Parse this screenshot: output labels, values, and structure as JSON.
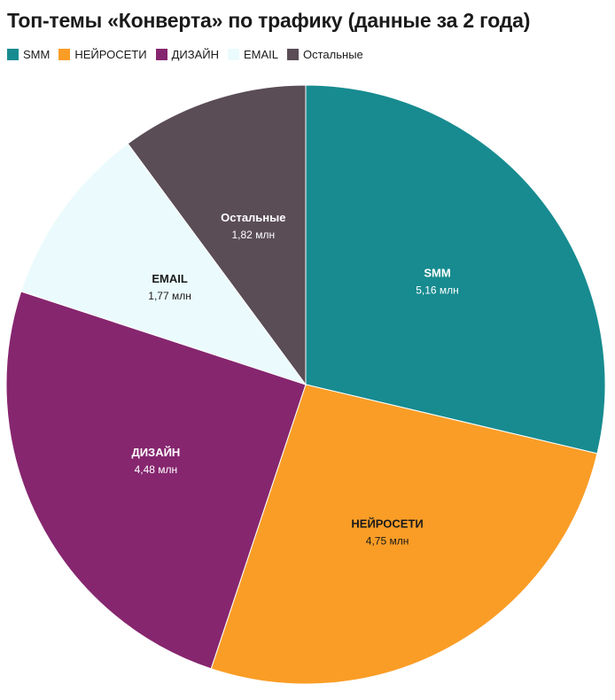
{
  "chart_data": {
    "type": "pie",
    "title": "Топ-темы «Конверта» по трафику (данные за 2 года)",
    "slices": [
      {
        "name": "SMM",
        "value": 5.16,
        "label": "5,16 млн",
        "color": "#178b90",
        "text_color": "#ffffff"
      },
      {
        "name": "НЕЙРОСЕТИ",
        "value": 4.75,
        "label": "4,75 млн",
        "color": "#fa9d26",
        "text_color": "#1a1a1a"
      },
      {
        "name": "ДИЗАЙН",
        "value": 4.48,
        "label": "4,48 млн",
        "color": "#86266f",
        "text_color": "#ffffff"
      },
      {
        "name": "EMAIL",
        "value": 1.77,
        "label": "1,77 млн",
        "color": "#ebfbfd",
        "text_color": "#1a1a1a"
      },
      {
        "name": "Остальные",
        "value": 1.82,
        "label": "1,82 млн",
        "color": "#5a4d56",
        "text_color": "#ffffff"
      }
    ],
    "legend": {
      "placement": "top-left",
      "entries": [
        "SMM",
        "НЕЙРОСЕТИ",
        "ДИЗАЙН",
        "EMAIL",
        "Остальные"
      ]
    }
  }
}
